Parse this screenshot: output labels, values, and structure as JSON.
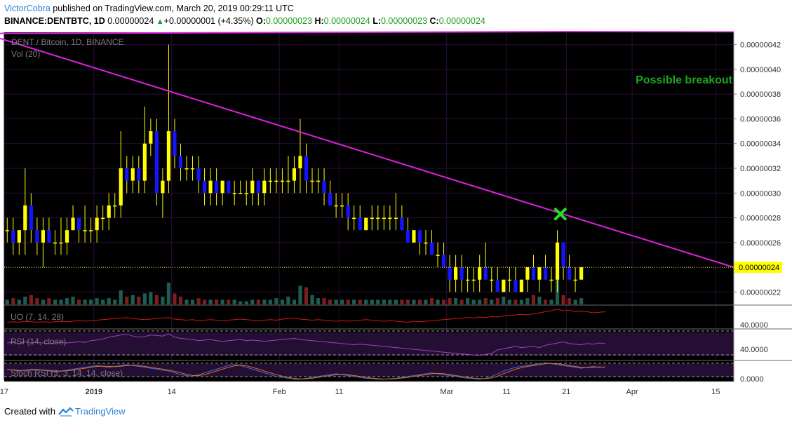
{
  "header": {
    "author": "VictorCobra",
    "published_text": "published on TradingView.com, March 20, 2019 00:29:11 UTC",
    "symbol": "BINANCE:DENTBTC, 1D",
    "last": "0.00000024",
    "arrow": "▲",
    "change": "+0.00000001 (+4.35%)",
    "o_label": "O:",
    "o_value": "0.00000023",
    "h_label": "H:",
    "h_value": "0.00000024",
    "l_label": "L:",
    "l_value": "0.00000023",
    "c_label": "C:",
    "c_value": "0.00000024"
  },
  "footer": {
    "created_with": "Created with",
    "brand": "TradingView"
  },
  "colors": {
    "background": "#000000",
    "up_candle": "#ffff00",
    "down_candle": "#1414ff",
    "trendline": "#e020e0",
    "annotation": "#1fa51f",
    "vol_up": "#1d5c50",
    "vol_down": "#7a1e22",
    "uo_line": "#d01818",
    "rsi_line": "#a040c0",
    "stoch_k": "#3a70d8",
    "stoch_d": "#e07020"
  },
  "chart_data": {
    "type": "candlestick",
    "title": "DENT / Bitcoin, 1D, BINANCE",
    "volume_label": "Vol (20)",
    "annotation": "Possible breakout",
    "annotation_marker": "x-mark-icon",
    "current_price_label": "0.00000024",
    "y_ticks": [
      "0.00000042",
      "0.00000040",
      "0.00000038",
      "0.00000036",
      "0.00000034",
      "0.00000032",
      "0.00000030",
      "0.00000028",
      "0.00000026",
      "0.00000022"
    ],
    "y_tick_values": [
      42,
      40,
      38,
      36,
      34,
      32,
      30,
      28,
      26,
      22
    ],
    "price_unit_scale": 1e-08,
    "ylim": [
      21,
      43
    ],
    "x_ticks": [
      "17",
      "2019",
      "14",
      "Feb",
      "11",
      "Mar",
      "11",
      "21",
      "Apr",
      "15"
    ],
    "x_tick_bold": [
      false,
      true,
      false,
      false,
      false,
      false,
      false,
      false,
      false,
      false
    ],
    "x_tick_days": [
      0,
      15,
      28,
      46,
      56,
      74,
      84,
      94,
      105,
      119
    ],
    "date_start": "2018-12-17",
    "date_end": "2019-04-18",
    "dates_note": "candle day index 0 = 2018-12-17",
    "trendlines": [
      {
        "from": {
          "date": "2018-12-13",
          "price": 43
        },
        "to": {
          "date": "2019-04-18",
          "price": 24
        }
      },
      {
        "from": {
          "date": "2018-12-13",
          "price": 42.9
        },
        "to": {
          "date": "2019-04-18",
          "price": 43.1
        }
      }
    ],
    "horizontal_line": {
      "price": 24,
      "style": "dotted"
    },
    "breakout_point": {
      "date": "2019-03-20",
      "price": 28.3
    },
    "candles": [
      {
        "o": 27,
        "h": 28,
        "l": 26,
        "c": 27,
        "v": 3
      },
      {
        "o": 27,
        "h": 28,
        "l": 25,
        "c": 26,
        "v": 4
      },
      {
        "o": 26,
        "h": 27,
        "l": 25,
        "c": 27,
        "v": 3
      },
      {
        "o": 27,
        "h": 32,
        "l": 25,
        "c": 29,
        "v": 5
      },
      {
        "o": 29,
        "h": 30,
        "l": 26,
        "c": 27,
        "v": 6
      },
      {
        "o": 27,
        "h": 28,
        "l": 25,
        "c": 26,
        "v": 4
      },
      {
        "o": 26,
        "h": 28,
        "l": 24,
        "c": 27,
        "v": 3
      },
      {
        "o": 27,
        "h": 28,
        "l": 26,
        "c": 26,
        "v": 4
      },
      {
        "o": 26,
        "h": 27,
        "l": 25,
        "c": 26,
        "v": 3
      },
      {
        "o": 26,
        "h": 28,
        "l": 25,
        "c": 26,
        "v": 3
      },
      {
        "o": 26,
        "h": 28,
        "l": 25,
        "c": 27,
        "v": 4
      },
      {
        "o": 27,
        "h": 29,
        "l": 27,
        "c": 28,
        "v": 5
      },
      {
        "o": 28,
        "h": 28,
        "l": 26,
        "c": 27,
        "v": 3
      },
      {
        "o": 27,
        "h": 29,
        "l": 26,
        "c": 27,
        "v": 3
      },
      {
        "o": 27,
        "h": 28,
        "l": 26,
        "c": 27,
        "v": 3
      },
      {
        "o": 27,
        "h": 29,
        "l": 26,
        "c": 28,
        "v": 4
      },
      {
        "o": 28,
        "h": 29,
        "l": 27,
        "c": 28,
        "v": 3
      },
      {
        "o": 28,
        "h": 30,
        "l": 27,
        "c": 29,
        "v": 4
      },
      {
        "o": 29,
        "h": 30,
        "l": 28,
        "c": 29,
        "v": 3
      },
      {
        "o": 29,
        "h": 35,
        "l": 28,
        "c": 32,
        "v": 9
      },
      {
        "o": 32,
        "h": 33,
        "l": 30,
        "c": 31,
        "v": 5
      },
      {
        "o": 31,
        "h": 33,
        "l": 30,
        "c": 32,
        "v": 6
      },
      {
        "o": 32,
        "h": 33,
        "l": 30,
        "c": 31,
        "v": 5
      },
      {
        "o": 31,
        "h": 37,
        "l": 30,
        "c": 34,
        "v": 7
      },
      {
        "o": 34,
        "h": 36,
        "l": 33,
        "c": 35,
        "v": 8
      },
      {
        "o": 35,
        "h": 36,
        "l": 29,
        "c": 30,
        "v": 6
      },
      {
        "o": 30,
        "h": 32,
        "l": 28,
        "c": 31,
        "v": 5
      },
      {
        "o": 31,
        "h": 42,
        "l": 30,
        "c": 35,
        "v": 14
      },
      {
        "o": 35,
        "h": 36,
        "l": 32,
        "c": 33,
        "v": 7
      },
      {
        "o": 33,
        "h": 34,
        "l": 31,
        "c": 32,
        "v": 5
      },
      {
        "o": 32,
        "h": 33,
        "l": 31,
        "c": 32,
        "v": 3
      },
      {
        "o": 32,
        "h": 33,
        "l": 31,
        "c": 32,
        "v": 3
      },
      {
        "o": 32,
        "h": 33,
        "l": 30,
        "c": 31,
        "v": 4
      },
      {
        "o": 31,
        "h": 32,
        "l": 29,
        "c": 30,
        "v": 3
      },
      {
        "o": 30,
        "h": 32,
        "l": 29,
        "c": 31,
        "v": 3
      },
      {
        "o": 31,
        "h": 32,
        "l": 29,
        "c": 30,
        "v": 3
      },
      {
        "o": 30,
        "h": 31,
        "l": 29,
        "c": 31,
        "v": 3
      },
      {
        "o": 31,
        "h": 31,
        "l": 30,
        "c": 30,
        "v": 3
      },
      {
        "o": 30,
        "h": 31,
        "l": 29,
        "c": 30,
        "v": 3
      },
      {
        "o": 30,
        "h": 31,
        "l": 30,
        "c": 30,
        "v": 2
      },
      {
        "o": 30,
        "h": 31,
        "l": 29,
        "c": 30,
        "v": 2
      },
      {
        "o": 30,
        "h": 32,
        "l": 29,
        "c": 31,
        "v": 3
      },
      {
        "o": 31,
        "h": 31,
        "l": 29,
        "c": 30,
        "v": 3
      },
      {
        "o": 30,
        "h": 32,
        "l": 29,
        "c": 31,
        "v": 3
      },
      {
        "o": 31,
        "h": 32,
        "l": 30,
        "c": 31,
        "v": 3
      },
      {
        "o": 31,
        "h": 32,
        "l": 30,
        "c": 31,
        "v": 4
      },
      {
        "o": 31,
        "h": 32,
        "l": 30,
        "c": 31,
        "v": 3
      },
      {
        "o": 31,
        "h": 33,
        "l": 30,
        "c": 31,
        "v": 5
      },
      {
        "o": 31,
        "h": 33,
        "l": 30,
        "c": 32,
        "v": 3
      },
      {
        "o": 32,
        "h": 36,
        "l": 30,
        "c": 33,
        "v": 12
      },
      {
        "o": 33,
        "h": 34,
        "l": 30,
        "c": 31,
        "v": 11
      },
      {
        "o": 31,
        "h": 32,
        "l": 30,
        "c": 31,
        "v": 6
      },
      {
        "o": 31,
        "h": 32,
        "l": 30,
        "c": 31,
        "v": 4
      },
      {
        "o": 31,
        "h": 32,
        "l": 29,
        "c": 30,
        "v": 4
      },
      {
        "o": 30,
        "h": 31,
        "l": 29,
        "c": 29,
        "v": 3
      },
      {
        "o": 29,
        "h": 30,
        "l": 28,
        "c": 29,
        "v": 3
      },
      {
        "o": 29,
        "h": 30,
        "l": 28,
        "c": 29,
        "v": 3
      },
      {
        "o": 29,
        "h": 30,
        "l": 27,
        "c": 28,
        "v": 3
      },
      {
        "o": 28,
        "h": 29,
        "l": 27,
        "c": 28,
        "v": 3
      },
      {
        "o": 28,
        "h": 29,
        "l": 27,
        "c": 27,
        "v": 3
      },
      {
        "o": 27,
        "h": 28,
        "l": 27,
        "c": 28,
        "v": 3
      },
      {
        "o": 28,
        "h": 29,
        "l": 27,
        "c": 28,
        "v": 3
      },
      {
        "o": 28,
        "h": 29,
        "l": 27,
        "c": 28,
        "v": 3
      },
      {
        "o": 28,
        "h": 29,
        "l": 27,
        "c": 28,
        "v": 3
      },
      {
        "o": 28,
        "h": 29,
        "l": 27,
        "c": 28,
        "v": 3
      },
      {
        "o": 28,
        "h": 30,
        "l": 27,
        "c": 28,
        "v": 3
      },
      {
        "o": 28,
        "h": 29,
        "l": 27,
        "c": 27,
        "v": 3
      },
      {
        "o": 27,
        "h": 28,
        "l": 26,
        "c": 26,
        "v": 3
      },
      {
        "o": 26,
        "h": 27,
        "l": 26,
        "c": 27,
        "v": 3
      },
      {
        "o": 27,
        "h": 27,
        "l": 25,
        "c": 26,
        "v": 3
      },
      {
        "o": 26,
        "h": 27,
        "l": 25,
        "c": 26,
        "v": 3
      },
      {
        "o": 26,
        "h": 27,
        "l": 25,
        "c": 25,
        "v": 4
      },
      {
        "o": 25,
        "h": 26,
        "l": 24,
        "c": 25,
        "v": 3
      },
      {
        "o": 25,
        "h": 26,
        "l": 24,
        "c": 24,
        "v": 3
      },
      {
        "o": 24,
        "h": 25,
        "l": 22,
        "c": 23,
        "v": 4
      },
      {
        "o": 23,
        "h": 25,
        "l": 22,
        "c": 24,
        "v": 4
      },
      {
        "o": 24,
        "h": 25,
        "l": 22,
        "c": 23,
        "v": 3
      },
      {
        "o": 23,
        "h": 24,
        "l": 22,
        "c": 23,
        "v": 4
      },
      {
        "o": 23,
        "h": 24,
        "l": 22,
        "c": 23,
        "v": 3
      },
      {
        "o": 23,
        "h": 25,
        "l": 22,
        "c": 24,
        "v": 3
      },
      {
        "o": 24,
        "h": 26,
        "l": 23,
        "c": 23,
        "v": 4
      },
      {
        "o": 23,
        "h": 24,
        "l": 22,
        "c": 23,
        "v": 3
      },
      {
        "o": 23,
        "h": 24,
        "l": 22,
        "c": 22,
        "v": 4
      },
      {
        "o": 22,
        "h": 23,
        "l": 22,
        "c": 23,
        "v": 5
      },
      {
        "o": 23,
        "h": 24,
        "l": 22,
        "c": 23,
        "v": 3
      },
      {
        "o": 23,
        "h": 24,
        "l": 22,
        "c": 22,
        "v": 3
      },
      {
        "o": 22,
        "h": 23,
        "l": 22,
        "c": 23,
        "v": 3
      },
      {
        "o": 23,
        "h": 24,
        "l": 22,
        "c": 24,
        "v": 4
      },
      {
        "o": 24,
        "h": 25,
        "l": 23,
        "c": 23,
        "v": 6
      },
      {
        "o": 23,
        "h": 24,
        "l": 22,
        "c": 24,
        "v": 5
      },
      {
        "o": 24,
        "h": 25,
        "l": 23,
        "c": 23,
        "v": 3
      },
      {
        "o": 23,
        "h": 24,
        "l": 22,
        "c": 23,
        "v": 3
      },
      {
        "o": 23,
        "h": 27,
        "l": 22,
        "c": 26,
        "v": 18
      },
      {
        "o": 26,
        "h": 26,
        "l": 23,
        "c": 24,
        "v": 6
      },
      {
        "o": 24,
        "h": 25,
        "l": 23,
        "c": 23,
        "v": 4
      },
      {
        "o": 23,
        "h": 24,
        "l": 22,
        "c": 23,
        "v": 3
      },
      {
        "o": 23,
        "h": 24,
        "l": 23,
        "c": 24,
        "v": 4
      }
    ],
    "indicators": [
      {
        "name": "UO (7, 14, 28)",
        "tick": "40.0000",
        "values": [
          30,
          31,
          30,
          32,
          31,
          30,
          31,
          30,
          31,
          32,
          31,
          32,
          33,
          32,
          33,
          34,
          35,
          36,
          37,
          38,
          39,
          37,
          36,
          35,
          36,
          37,
          38,
          39,
          36,
          35,
          34,
          35,
          33,
          34,
          35,
          34,
          33,
          34,
          35,
          36,
          35,
          34,
          33,
          34,
          35,
          34,
          36,
          37,
          38,
          36,
          35,
          34,
          35,
          34,
          33,
          32,
          33,
          32,
          33,
          34,
          35,
          34,
          33,
          32,
          33,
          32,
          31,
          30,
          32,
          31,
          32,
          33,
          34,
          35,
          36,
          37,
          38,
          39,
          38,
          40,
          39,
          41,
          40,
          42,
          43,
          44,
          45,
          44,
          46,
          48,
          50,
          52,
          55,
          52,
          53,
          50,
          51,
          50,
          48,
          49,
          50
        ]
      },
      {
        "name": "RSI (14, close)",
        "tick": "40.0000",
        "values": [
          48,
          49,
          47,
          50,
          48,
          49,
          48,
          47,
          48,
          49,
          48,
          49,
          50,
          49,
          52,
          53,
          55,
          58,
          60,
          62,
          63,
          60,
          58,
          59,
          62,
          61,
          60,
          64,
          58,
          56,
          55,
          54,
          52,
          53,
          54,
          52,
          51,
          52,
          53,
          54,
          52,
          53,
          52,
          51,
          52,
          53,
          54,
          55,
          56,
          54,
          53,
          52,
          51,
          50,
          49,
          48,
          47,
          46,
          45,
          46,
          45,
          44,
          43,
          42,
          41,
          40,
          39,
          38,
          37,
          36,
          35,
          34,
          33,
          32,
          31,
          30,
          29,
          28,
          27,
          26,
          28,
          30,
          36,
          38,
          40,
          42,
          40,
          41,
          42,
          40,
          44,
          46,
          48,
          50,
          47,
          46,
          45,
          47,
          46,
          48,
          47
        ]
      },
      {
        "name": "Stoch RSI (3, 3, 14, 14, close)",
        "tick": "0.0000",
        "k": [
          60,
          55,
          50,
          55,
          60,
          58,
          55,
          50,
          45,
          50,
          55,
          60,
          65,
          70,
          75,
          80,
          75,
          70,
          75,
          80,
          85,
          80,
          75,
          70,
          65,
          60,
          55,
          50,
          40,
          30,
          25,
          20,
          30,
          40,
          50,
          60,
          70,
          80,
          85,
          80,
          70,
          60,
          50,
          40,
          30,
          20,
          15,
          10,
          5,
          5,
          10,
          15,
          20,
          25,
          30,
          35,
          30,
          25,
          20,
          15,
          10,
          8,
          5,
          5,
          8,
          10,
          15,
          20,
          25,
          30,
          35,
          40,
          35,
          30,
          25,
          20,
          15,
          10,
          8,
          5,
          10,
          20,
          35,
          50,
          60,
          70,
          75,
          80,
          85,
          90,
          95,
          90,
          85,
          80,
          75,
          70,
          65,
          70,
          75,
          70,
          72
        ],
        "d": [
          58,
          56,
          53,
          53,
          55,
          57,
          56,
          53,
          50,
          49,
          51,
          55,
          60,
          65,
          70,
          75,
          76,
          75,
          74,
          76,
          80,
          82,
          80,
          75,
          70,
          65,
          60,
          55,
          48,
          40,
          32,
          25,
          25,
          30,
          40,
          50,
          60,
          70,
          78,
          82,
          78,
          70,
          60,
          50,
          40,
          30,
          22,
          15,
          10,
          7,
          7,
          10,
          15,
          20,
          25,
          30,
          32,
          30,
          25,
          20,
          15,
          11,
          8,
          6,
          6,
          8,
          11,
          15,
          20,
          25,
          30,
          35,
          37,
          35,
          30,
          25,
          20,
          15,
          11,
          8,
          8,
          12,
          22,
          35,
          48,
          60,
          68,
          75,
          80,
          85,
          90,
          92,
          90,
          85,
          80,
          75,
          70,
          68,
          70,
          72,
          71
        ]
      }
    ]
  }
}
